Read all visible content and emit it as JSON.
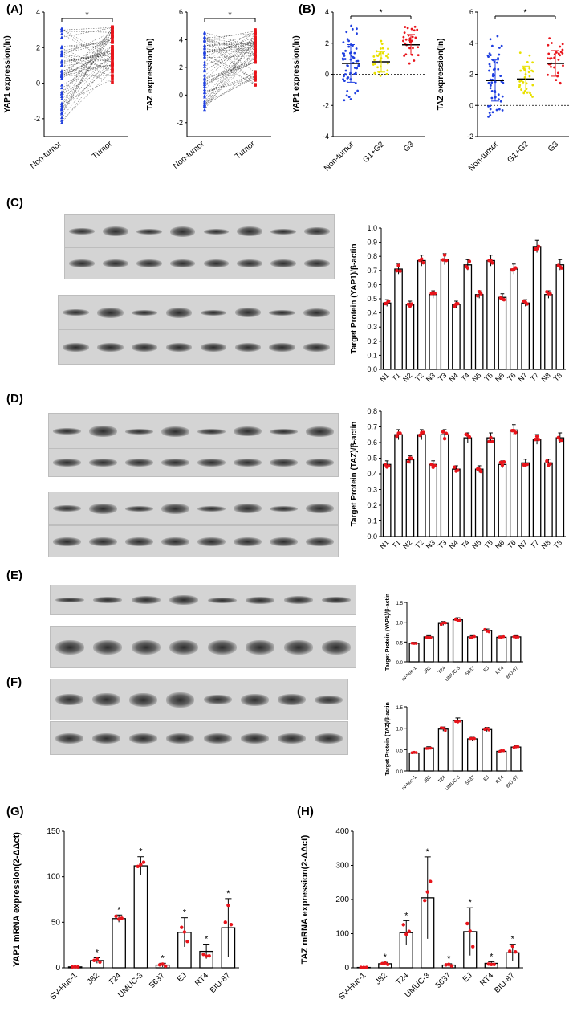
{
  "panels": {
    "A": "(A)",
    "B": "(B)",
    "C": "(C)",
    "D": "(D)",
    "E": "(E)",
    "F": "(F)",
    "G": "(G)",
    "H": "(H)"
  },
  "colors": {
    "nontumor": "#1f3fe0",
    "g1g2": "#e8e000",
    "tumor": "#e8141b",
    "bar_edge": "#000000",
    "dot": "#e8141b"
  },
  "blots": {
    "tissue_top": [
      "N1",
      "T1",
      "N2",
      "T2",
      "N3",
      "T3",
      "N4",
      "T4"
    ],
    "tissue_bottom": [
      "N5",
      "T5",
      "N6",
      "T6",
      "N7",
      "T7",
      "N8",
      "T8"
    ],
    "cells": [
      "sv-huc-1",
      "J82",
      "T24",
      "UMUC-3",
      "5637",
      "EJ",
      "RT4",
      "BIU-87"
    ],
    "yap1": "YAP1",
    "taz": "TAZ",
    "actin": "β-actin"
  },
  "chart_data": [
    {
      "id": "A1",
      "type": "scatter",
      "categories": [
        "Non-tumor",
        "Tumor"
      ],
      "ylabel": "YAP1 expression(ln)",
      "ylim": [
        -3,
        4
      ],
      "yticks": [
        "-2",
        "0",
        "2",
        "4"
      ],
      "sig": "*",
      "summary": "paired lines between Non-tumor (range -2.3 to 3.3) and Tumor (range -0.2 to 3.2)"
    },
    {
      "id": "A2",
      "type": "scatter",
      "categories": [
        "Non-tumor",
        "Tumor"
      ],
      "ylabel": "TAZ expression(ln)",
      "ylim": [
        -3,
        6
      ],
      "yticks": [
        "-2",
        "0",
        "2",
        "4",
        "6"
      ],
      "sig": "*",
      "summary": "paired lines between Non-tumor (range -1.5 to 4.6) and Tumor (range 0.6 to 4.8)"
    },
    {
      "id": "B1",
      "type": "scatter",
      "categories": [
        "Non-tumor",
        "G1+G2",
        "G3"
      ],
      "ylabel": "YAP1 expression(ln)",
      "ylim": [
        -4,
        4
      ],
      "yticks": [
        "-4",
        "-2",
        "0",
        "2",
        "4"
      ],
      "sig": "*",
      "means": [
        0.7,
        0.8,
        1.9
      ]
    },
    {
      "id": "B2",
      "type": "scatter",
      "categories": [
        "Non-tumor",
        "G1+G2",
        "G3"
      ],
      "ylabel": "TAZ expression(ln)",
      "ylim": [
        -2,
        6
      ],
      "yticks": [
        "-2",
        "0",
        "2",
        "4",
        "6"
      ],
      "sig": "*",
      "means": [
        1.6,
        1.7,
        2.7
      ]
    },
    {
      "id": "C",
      "type": "bar",
      "categories": [
        "N1",
        "T1",
        "N2",
        "T2",
        "N3",
        "T3",
        "N4",
        "T4",
        "N5",
        "T5",
        "N6",
        "T6",
        "N7",
        "T7",
        "N8",
        "T8"
      ],
      "values": [
        0.47,
        0.71,
        0.46,
        0.77,
        0.53,
        0.78,
        0.46,
        0.74,
        0.53,
        0.77,
        0.51,
        0.71,
        0.47,
        0.87,
        0.53,
        0.74
      ],
      "ylabel": "Target Protein (YAP1)/β-actin",
      "ylim": [
        0,
        1.0
      ],
      "yticks": [
        "0.0",
        "0.1",
        "0.2",
        "0.3",
        "0.4",
        "0.5",
        "0.6",
        "0.7",
        "0.8",
        "0.9",
        "1.0"
      ]
    },
    {
      "id": "D",
      "type": "bar",
      "categories": [
        "N1",
        "T1",
        "N2",
        "T2",
        "N3",
        "T3",
        "N4",
        "T4",
        "N5",
        "T5",
        "N6",
        "T6",
        "N7",
        "T7",
        "N8",
        "T8"
      ],
      "values": [
        0.46,
        0.65,
        0.49,
        0.65,
        0.46,
        0.65,
        0.43,
        0.63,
        0.43,
        0.63,
        0.46,
        0.68,
        0.47,
        0.62,
        0.47,
        0.63
      ],
      "ylabel": "Target Protein (TAZ)/β-actin",
      "ylim": [
        0,
        0.8
      ],
      "yticks": [
        "0.0",
        "0.1",
        "0.2",
        "0.3",
        "0.4",
        "0.5",
        "0.6",
        "0.7",
        "0.8"
      ]
    },
    {
      "id": "E",
      "type": "bar",
      "categories": [
        "sv-huc-1",
        "J82",
        "T24",
        "UMUC-3",
        "5637",
        "EJ",
        "RT4",
        "BIU-87"
      ],
      "values": [
        0.47,
        0.63,
        0.97,
        1.06,
        0.63,
        0.79,
        0.62,
        0.63
      ],
      "ylabel": "Target Protein (YAP1)/β-actin",
      "ylim": [
        0,
        1.5
      ],
      "yticks": [
        "0.0",
        "0.5",
        "1.0",
        "1.5"
      ]
    },
    {
      "id": "F",
      "type": "bar",
      "categories": [
        "sv-huc-1",
        "J82",
        "T24",
        "UMUC-3",
        "5637",
        "EJ",
        "RT4",
        "BIU-87"
      ],
      "values": [
        0.42,
        0.54,
        0.98,
        1.18,
        0.75,
        0.97,
        0.46,
        0.56
      ],
      "ylabel": "Target Protein (TAZ)/β-actin",
      "ylim": [
        0,
        1.5
      ],
      "yticks": [
        "0.0",
        "0.5",
        "1.0",
        "1.5"
      ]
    },
    {
      "id": "G",
      "type": "bar",
      "categories": [
        "SV-Huc-1",
        "J82",
        "T24",
        "UMUC-3",
        "5637",
        "EJ",
        "RT4",
        "BIU-87"
      ],
      "values": [
        1,
        8,
        54,
        112,
        3,
        39,
        18,
        44
      ],
      "sd": [
        0,
        3,
        4,
        10,
        2,
        16,
        8,
        32
      ],
      "sig": [
        "",
        "*",
        "*",
        "*",
        "*",
        "*",
        "*",
        "*"
      ],
      "ylabel": "YAP1 mRNA expression(2-ΔΔct)",
      "ylim": [
        0,
        150
      ],
      "yticks": [
        "0",
        "50",
        "100",
        "150"
      ]
    },
    {
      "id": "H",
      "type": "bar",
      "categories": [
        "SV-Huc-1",
        "J82",
        "T24",
        "UMUC-3",
        "5637",
        "EJ",
        "RT4",
        "BIU-87"
      ],
      "values": [
        1,
        12,
        103,
        205,
        8,
        106,
        13,
        44
      ],
      "sd": [
        0,
        4,
        35,
        120,
        4,
        70,
        5,
        25
      ],
      "sig": [
        "",
        "*",
        "*",
        "*",
        "*",
        "*",
        "*",
        "*"
      ],
      "ylabel": "TAZ mRNA expression(2-ΔΔct)",
      "ylim": [
        0,
        400
      ],
      "yticks": [
        "0",
        "100",
        "200",
        "300",
        "400"
      ]
    }
  ]
}
